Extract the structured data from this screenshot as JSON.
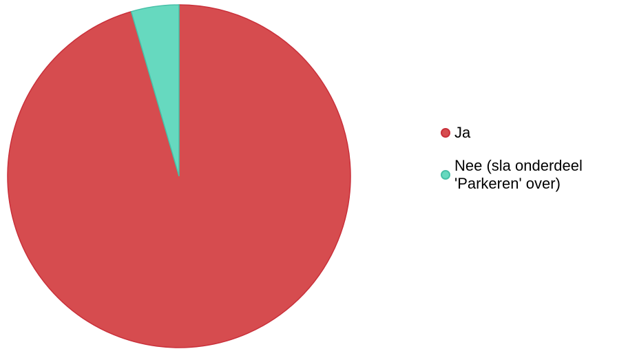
{
  "chart_data": {
    "type": "pie",
    "slices": [
      {
        "label": "Ja",
        "value": 95.5,
        "color": "#d64c4f",
        "border": "#c9303a"
      },
      {
        "label": "Nee (sla onderdeel 'Parkeren' over)",
        "value": 4.5,
        "color": "#66d9bf",
        "border": "#48c0a8"
      }
    ],
    "legend_position": "right",
    "start_angle": "top",
    "direction": "clockwise"
  }
}
